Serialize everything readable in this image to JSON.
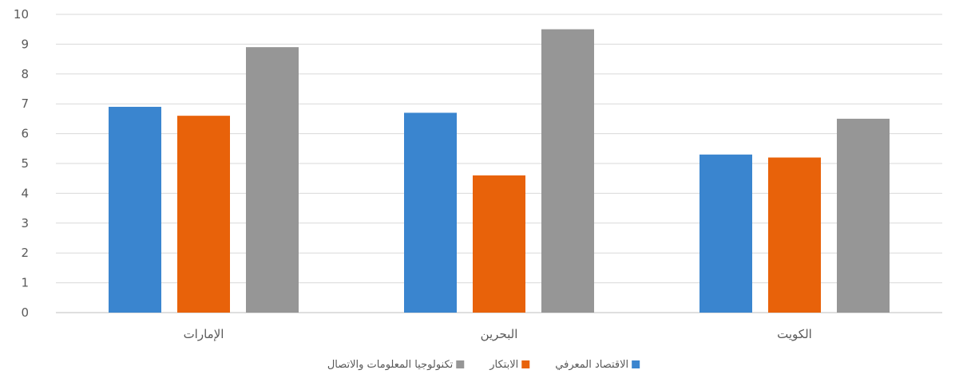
{
  "chart_data": {
    "type": "bar",
    "categories": [
      "الإمارات",
      "البحرين",
      "الكويت"
    ],
    "series": [
      {
        "name": "الاقتصاد المعرفي",
        "color": "#3a85cf",
        "values": [
          6.9,
          6.7,
          5.3
        ]
      },
      {
        "name": "الابتكار",
        "color": "#e8620a",
        "values": [
          6.6,
          4.6,
          5.2
        ]
      },
      {
        "name": "تكنولوجيا المعلومات والاتصال",
        "color": "#969696",
        "values": [
          8.9,
          9.5,
          6.5
        ]
      }
    ],
    "ylim": [
      0,
      10
    ],
    "yticks": [
      0,
      1,
      2,
      3,
      4,
      5,
      6,
      7,
      8,
      9,
      10
    ],
    "grid": true,
    "legend_position": "bottom-center"
  }
}
